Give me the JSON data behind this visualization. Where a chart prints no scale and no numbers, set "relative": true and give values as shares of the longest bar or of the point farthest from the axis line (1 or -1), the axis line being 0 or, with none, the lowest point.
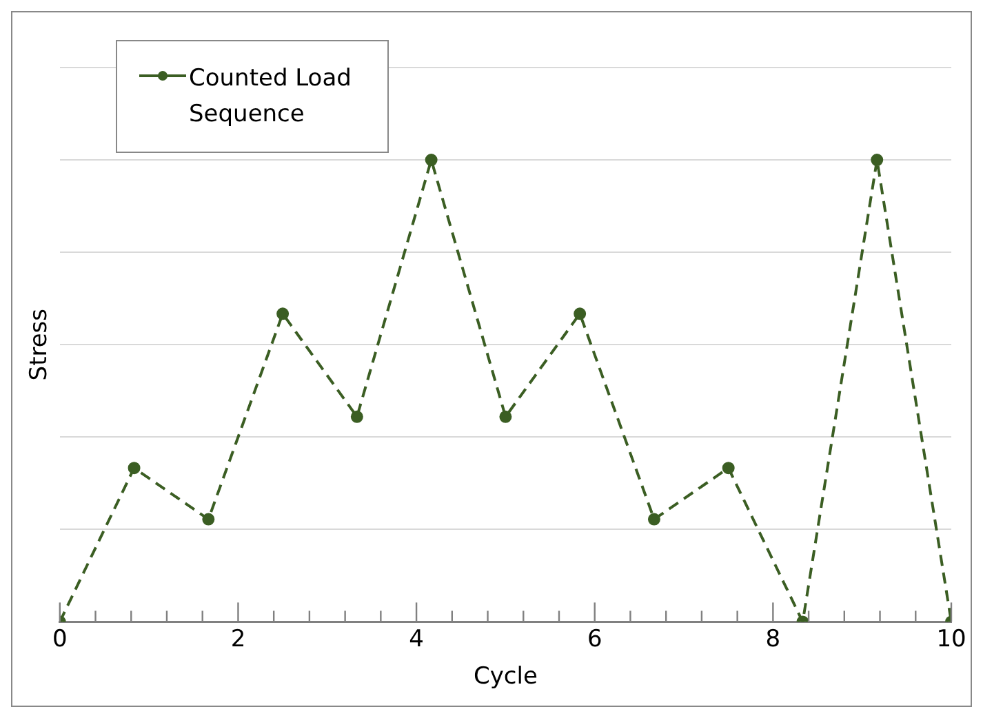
{
  "chart_data": {
    "type": "line",
    "xlabel": "Cycle",
    "ylabel": "Stress",
    "relative": true,
    "x": [
      0,
      0.8333,
      1.6667,
      2.5,
      3.3333,
      4.1667,
      5,
      5.8333,
      6.6667,
      7.5,
      8.3333,
      9.1667,
      10
    ],
    "series": [
      {
        "name": "Counted Load Sequence",
        "color": "#3b5e23",
        "values": [
          0,
          0.333,
          0.222,
          0.667,
          0.444,
          1,
          0.444,
          0.667,
          0.222,
          0.333,
          0,
          1,
          0
        ]
      }
    ],
    "xlim": [
      0,
      10
    ],
    "xticks": [
      0,
      {
        "value": 0.4,
        "label": null
      },
      {
        "value": 0.8,
        "label": null
      },
      {
        "value": 1.2,
        "label": null
      },
      {
        "value": 1.6,
        "label": null
      },
      2,
      {
        "value": 2.4,
        "label": null
      },
      {
        "value": 2.8,
        "label": null
      },
      {
        "value": 3.2,
        "label": null
      },
      {
        "value": 3.6,
        "label": null
      },
      4,
      {
        "value": 4.4,
        "label": null
      },
      {
        "value": 4.8,
        "label": null
      },
      {
        "value": 5.2,
        "label": null
      },
      {
        "value": 5.6,
        "label": null
      },
      6,
      {
        "value": 6.4,
        "label": null
      },
      {
        "value": 6.8,
        "label": null
      },
      {
        "value": 7.2,
        "label": null
      },
      {
        "value": 7.6,
        "label": null
      },
      8,
      {
        "value": 8.4,
        "label": null
      },
      {
        "value": 8.8,
        "label": null
      },
      {
        "value": 9.2,
        "label": null
      },
      {
        "value": 9.6,
        "label": null
      },
      10
    ],
    "grid": "y",
    "legend": "top left",
    "marker": "circle",
    "line_style": "dashed"
  }
}
